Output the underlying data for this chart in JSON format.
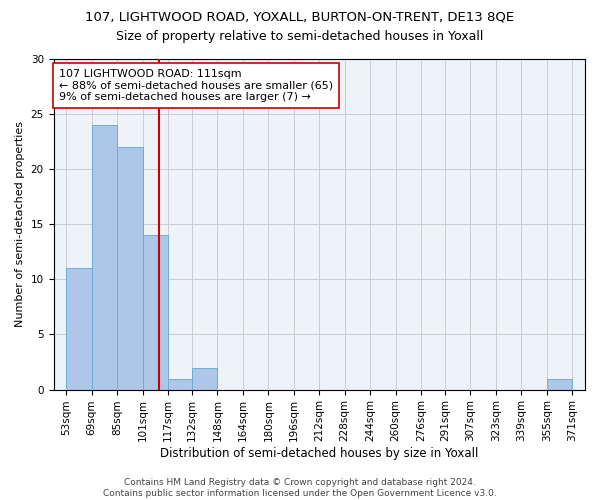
{
  "title": "107, LIGHTWOOD ROAD, YOXALL, BURTON-ON-TRENT, DE13 8QE",
  "subtitle": "Size of property relative to semi-detached houses in Yoxall",
  "xlabel": "Distribution of semi-detached houses by size in Yoxall",
  "ylabel": "Number of semi-detached properties",
  "bar_edges": [
    53,
    69,
    85,
    101,
    117,
    132,
    148,
    164,
    180,
    196,
    212,
    228,
    244,
    260,
    276,
    291,
    307,
    323,
    339,
    355,
    371
  ],
  "bar_heights": [
    11,
    24,
    22,
    14,
    1,
    2,
    0,
    0,
    0,
    0,
    0,
    0,
    0,
    0,
    0,
    0,
    0,
    0,
    0,
    1
  ],
  "bar_color": "#aec6e8",
  "bar_edgecolor": "#6aaed6",
  "property_line_x": 111,
  "property_line_color": "#cc0000",
  "annotation_text": "107 LIGHTWOOD ROAD: 111sqm\n← 88% of semi-detached houses are smaller (65)\n9% of semi-detached houses are larger (7) →",
  "annotation_box_color": "#ffffff",
  "annotation_box_edgecolor": "#cc0000",
  "ylim": [
    0,
    30
  ],
  "yticks": [
    0,
    5,
    10,
    15,
    20,
    25,
    30
  ],
  "background_color": "#eef2f9",
  "footer_text": "Contains HM Land Registry data © Crown copyright and database right 2024.\nContains public sector information licensed under the Open Government Licence v3.0.",
  "title_fontsize": 9.5,
  "subtitle_fontsize": 9,
  "xlabel_fontsize": 8.5,
  "ylabel_fontsize": 8,
  "tick_fontsize": 7.5,
  "footer_fontsize": 6.5
}
